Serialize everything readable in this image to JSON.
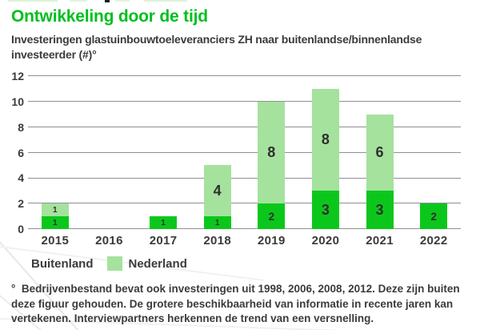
{
  "page": {
    "title": "Ontwikkeling door de tijd",
    "subtitle_line1": "Investeringen glastuinbouwtoeleveranciers ZH naar buitenlandse/binnenlandse",
    "subtitle_line2": "investeerder (#)°"
  },
  "chart_data": {
    "type": "bar",
    "stacked": true,
    "title": "Investeringen glastuinbouwtoeleveranciers ZH naar buitenlandse/binnenlandse investeerder (#)°",
    "categories": [
      "2015",
      "2016",
      "2017",
      "2018",
      "2019",
      "2020",
      "2021",
      "2022"
    ],
    "series": [
      {
        "name": "Buitenland",
        "color": "#0cc71b",
        "values": [
          1,
          0,
          1,
          1,
          2,
          3,
          3,
          2
        ]
      },
      {
        "name": "Nederland",
        "color": "#a5e29d",
        "values": [
          1,
          0,
          0,
          4,
          8,
          8,
          6,
          0
        ]
      }
    ],
    "totals": [
      2,
      0,
      1,
      5,
      10,
      11,
      9,
      2
    ],
    "ylim": [
      0,
      12
    ],
    "yticks": [
      0,
      2,
      4,
      6,
      8,
      10,
      12
    ],
    "grid": true,
    "gridline_color": "#8f9096",
    "value_labels": true,
    "legend_position": "bottom"
  },
  "legend": {
    "items": [
      {
        "label": "Buitenland",
        "color": "#0cc71b",
        "swatch_covered_by_ribbon": true
      },
      {
        "label": "Nederland",
        "color": "#a5e29d",
        "swatch_covered_by_ribbon": false
      }
    ]
  },
  "footnote": {
    "lines": [
      "°  Bedrijvenbestand bevat ook investeringen uit 1998, 2006, 2008, 2012. Deze zijn buiten",
      "deze figuur gehouden. De grotere beschikbaarheid van informatie in recente jaren kan",
      "vertekenen. Interviewpartners herkennen de trend van een versnelling."
    ]
  },
  "colors": {
    "title_green": "#00bf1d",
    "dark_green": "#0cc71b",
    "light_green": "#a5e29d",
    "text_dark": "#3b3b3b",
    "gridline": "#8f9096"
  }
}
